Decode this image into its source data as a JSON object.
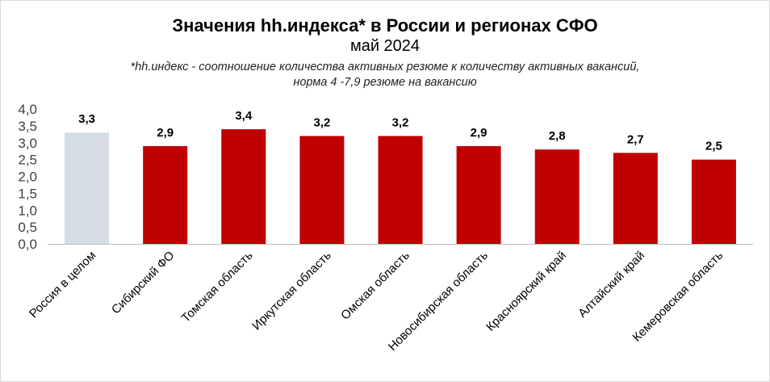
{
  "chart_data": {
    "type": "bar",
    "title": "Значения hh.индекса* в России и регионах СФО",
    "subtitle": "май 2024",
    "note_line1": "*hh.индекс - соотношение количества активных резюме к количеству активных вакансий,",
    "note_line2": "норма 4 -7,9 резюме на вакансию",
    "categories": [
      "Россия в целом",
      "Сибирский ФО",
      "Томская область",
      "Иркутская область",
      "Омская область",
      "Новосибирская область",
      "Красноярский край",
      "Алтайский край",
      "Кемеровская область"
    ],
    "values": [
      3.3,
      2.9,
      3.4,
      3.2,
      3.2,
      2.9,
      2.8,
      2.7,
      2.5
    ],
    "data_labels": [
      "3,3",
      "2,9",
      "3,4",
      "3,2",
      "3,2",
      "2,9",
      "2,8",
      "2,7",
      "2,5"
    ],
    "bar_colors": [
      "#d6dce4",
      "#c00000",
      "#c00000",
      "#c00000",
      "#c00000",
      "#c00000",
      "#c00000",
      "#c00000",
      "#c00000"
    ],
    "ylim": [
      0,
      4.0
    ],
    "yticks": [
      "0,0",
      "0,5",
      "1,0",
      "1,5",
      "2,0",
      "2,5",
      "3,0",
      "3,5",
      "4,0"
    ],
    "xlabel": "",
    "ylabel": "",
    "grid": false,
    "legend": "none"
  }
}
